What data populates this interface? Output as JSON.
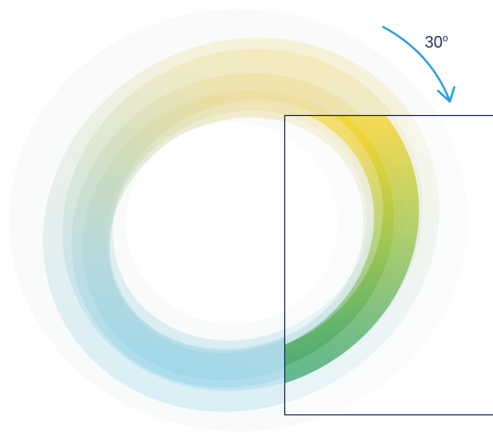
{
  "rotation_label": {
    "value": "30",
    "unit_symbol": "o"
  },
  "colors": {
    "arrow": "#2aa0d8",
    "frame": "#1a2a5c",
    "label": "#1f2f5f",
    "ring_stops": [
      "#7fd0ee",
      "#9fd3de",
      "#a8cbb9",
      "#c6d4a2",
      "#ecd98c",
      "#f2d14a"
    ],
    "overlay_gradient": [
      "#1f9c6e",
      "#8ebd3e",
      "#f0cf1d",
      "#f5d530"
    ]
  },
  "icons": {
    "rotation_arrow": "curved-arrow-icon"
  }
}
